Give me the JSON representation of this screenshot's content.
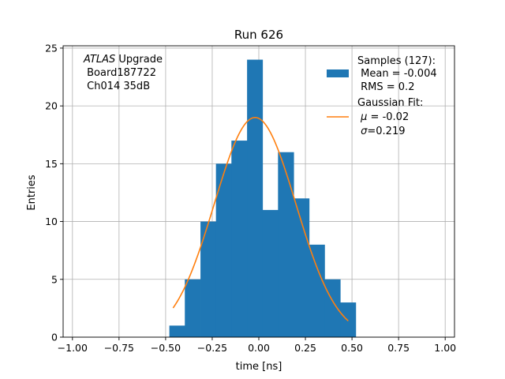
{
  "chart_data": {
    "type": "bar",
    "title": "Run 626",
    "xlabel": "time [ns]",
    "ylabel": "Entries",
    "xlim": [
      -1.05,
      1.05
    ],
    "ylim": [
      0,
      25.2
    ],
    "grid": true,
    "xticks": [
      -1.0,
      -0.75,
      -0.5,
      -0.25,
      0.0,
      0.25,
      0.5,
      0.75,
      1.0
    ],
    "xtick_labels": [
      "−1.00",
      "−0.75",
      "−0.50",
      "−0.25",
      "0.00",
      "0.25",
      "0.50",
      "0.75",
      "1.00"
    ],
    "yticks": [
      0,
      5,
      10,
      15,
      20,
      25
    ],
    "ytick_labels": [
      "0",
      "5",
      "10",
      "15",
      "20",
      "25"
    ],
    "histogram": {
      "color": "#1f77b4",
      "bin_edges": [
        -0.48,
        -0.397,
        -0.313,
        -0.23,
        -0.147,
        -0.063,
        0.02,
        0.103,
        0.187,
        0.27,
        0.353,
        0.437,
        0.52
      ],
      "counts": [
        1,
        5,
        10,
        15,
        17,
        24,
        11,
        16,
        12,
        8,
        5,
        3
      ]
    },
    "gaussian_fit": {
      "color": "#ff7f0e",
      "amplitude": 19.0,
      "mu": -0.02,
      "sigma": 0.219,
      "x_range": [
        -0.46,
        0.48
      ]
    },
    "annotation": {
      "line1_italic": "ATLAS",
      "line1_rest": " Upgrade",
      "line2": " Board187722",
      "line3": " Ch014 35dB"
    },
    "legend": {
      "placement": "top-right",
      "samples": {
        "line1": "Samples (127):",
        "line2": " Mean = -0.004",
        "line3": " RMS = 0.2"
      },
      "fit": {
        "line1": "Gaussian Fit:",
        "line2_sym": "μ",
        "line2_rest": " = -0.02",
        "line3_sym": "σ",
        "line3_rest": "=0.219"
      }
    }
  }
}
